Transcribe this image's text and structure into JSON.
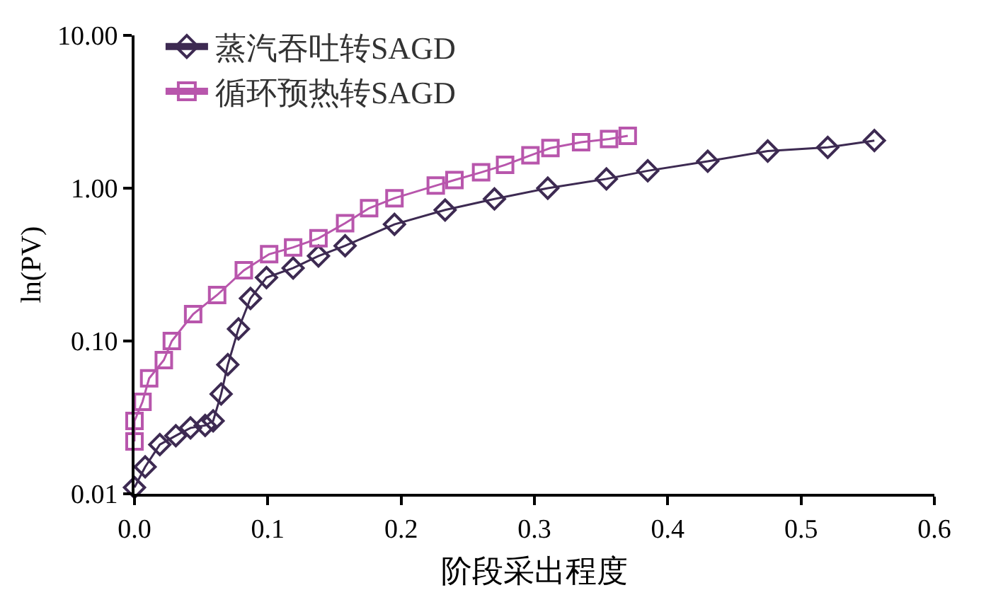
{
  "chart_data": {
    "type": "line",
    "xlabel": "阶段采出程度",
    "ylabel": "ln(PV)",
    "log": "y",
    "legend": "top left",
    "line_style": "solid",
    "xlim": [
      0,
      0.6
    ],
    "xticks": [
      {
        "value": 0,
        "label": "0.0"
      },
      {
        "value": 0.1,
        "label": "0.1"
      },
      {
        "value": 0.2,
        "label": "0.2"
      },
      {
        "value": 0.3,
        "label": "0.3"
      },
      {
        "value": 0.4,
        "label": "0.4"
      },
      {
        "value": 0.5,
        "label": "0.5"
      },
      {
        "value": 0.6,
        "label": "0.6"
      }
    ],
    "ylim": [
      0.01,
      10
    ],
    "yticks": [
      {
        "value": 0.01,
        "label": "0.01"
      },
      {
        "value": 0.1,
        "label": "0.10"
      },
      {
        "value": 1,
        "label": "1.00"
      },
      {
        "value": 10,
        "label": "10.00"
      }
    ],
    "series": [
      {
        "name": "蒸汽吞吐转SAGD",
        "color": "#3d2a52",
        "marker": "diamond",
        "x": [
          0.0,
          0.008,
          0.019,
          0.031,
          0.042,
          0.053,
          0.059,
          0.065,
          0.07,
          0.078,
          0.087,
          0.099,
          0.119,
          0.138,
          0.158,
          0.195,
          0.233,
          0.27,
          0.31,
          0.354,
          0.385,
          0.43,
          0.475,
          0.52,
          0.555
        ],
        "values": [
          0.011,
          0.015,
          0.021,
          0.024,
          0.027,
          0.028,
          0.03,
          0.045,
          0.07,
          0.12,
          0.19,
          0.26,
          0.3,
          0.36,
          0.42,
          0.58,
          0.72,
          0.85,
          1.0,
          1.15,
          1.3,
          1.5,
          1.75,
          1.85,
          2.05
        ]
      },
      {
        "name": "循环预热转SAGD",
        "color": "#b856ac",
        "marker": "square",
        "x": [
          0.0,
          0.0,
          0.006,
          0.011,
          0.022,
          0.028,
          0.044,
          0.062,
          0.082,
          0.101,
          0.119,
          0.138,
          0.158,
          0.176,
          0.195,
          0.226,
          0.24,
          0.26,
          0.278,
          0.297,
          0.312,
          0.335,
          0.356,
          0.37
        ],
        "values": [
          0.022,
          0.03,
          0.04,
          0.057,
          0.075,
          0.1,
          0.15,
          0.2,
          0.29,
          0.37,
          0.41,
          0.47,
          0.59,
          0.74,
          0.86,
          1.04,
          1.13,
          1.27,
          1.42,
          1.64,
          1.83,
          2.0,
          2.1,
          2.2
        ]
      }
    ]
  }
}
